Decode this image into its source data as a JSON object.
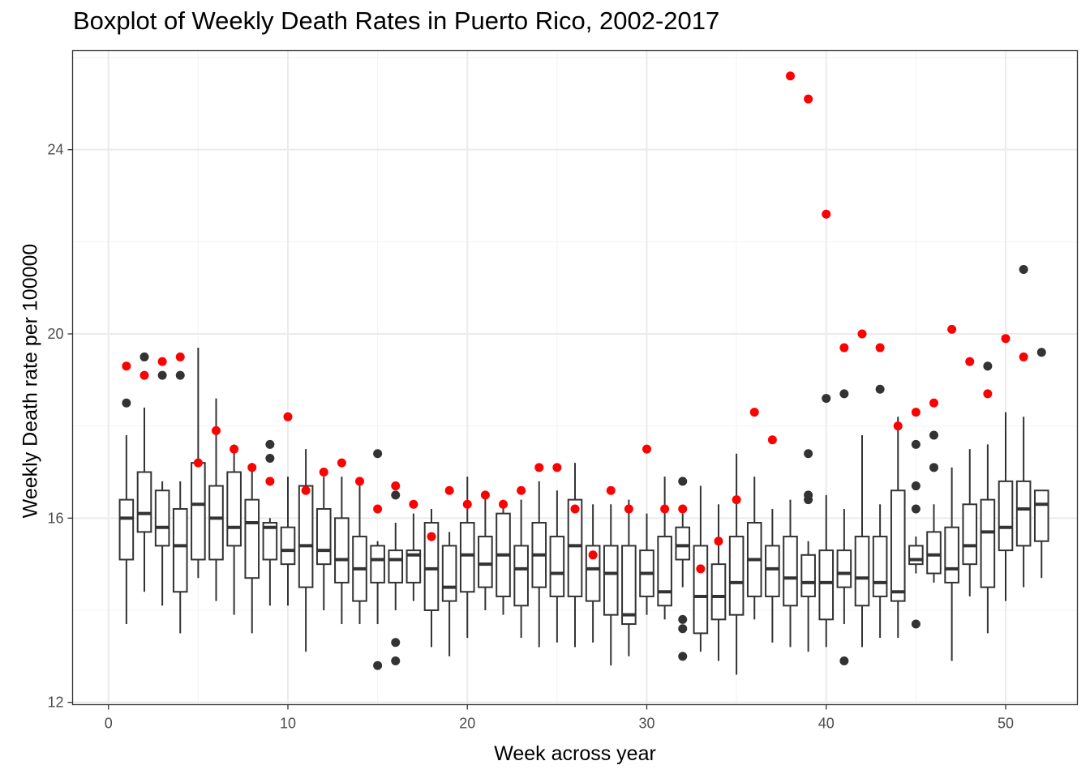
{
  "chart_data": {
    "type": "boxplot",
    "title": "Boxplot of Weekly Death Rates in Puerto Rico, 2002-2017",
    "xlabel": "Week across year",
    "ylabel": "Weekly Death rate per 100000",
    "xlim": [
      -2,
      54
    ],
    "ylim": [
      11.95,
      26.15
    ],
    "xticks": [
      0,
      10,
      20,
      30,
      40,
      50
    ],
    "yticks": [
      12,
      16,
      20,
      24
    ],
    "grid": true,
    "colors": {
      "box": "#333333",
      "outlier": "#333333",
      "highlight": "#ff0000",
      "grid_major": "#ebebeb",
      "grid_minor": "#f5f5f5"
    },
    "boxes": [
      {
        "week": 1,
        "lower": 13.7,
        "q1": 15.1,
        "median": 16.0,
        "q3": 16.4,
        "upper": 17.8,
        "outliers": [
          18.5
        ]
      },
      {
        "week": 2,
        "lower": 14.4,
        "q1": 15.7,
        "median": 16.1,
        "q3": 17.0,
        "upper": 18.4,
        "outliers": [
          19.5
        ]
      },
      {
        "week": 3,
        "lower": 14.1,
        "q1": 15.4,
        "median": 15.8,
        "q3": 16.6,
        "upper": 16.8,
        "outliers": [
          19.1
        ]
      },
      {
        "week": 4,
        "lower": 13.5,
        "q1": 14.4,
        "median": 15.4,
        "q3": 16.2,
        "upper": 16.8,
        "outliers": [
          19.1
        ]
      },
      {
        "week": 5,
        "lower": 14.7,
        "q1": 15.1,
        "median": 16.3,
        "q3": 17.2,
        "upper": 19.7,
        "outliers": []
      },
      {
        "week": 6,
        "lower": 14.2,
        "q1": 15.1,
        "median": 16.0,
        "q3": 16.7,
        "upper": 18.6,
        "outliers": []
      },
      {
        "week": 7,
        "lower": 13.9,
        "q1": 15.4,
        "median": 15.8,
        "q3": 17.0,
        "upper": 17.6,
        "outliers": []
      },
      {
        "week": 8,
        "lower": 13.5,
        "q1": 14.7,
        "median": 15.9,
        "q3": 16.4,
        "upper": 17.2,
        "outliers": []
      },
      {
        "week": 9,
        "lower": 14.1,
        "q1": 15.1,
        "median": 15.8,
        "q3": 15.9,
        "upper": 16.0,
        "outliers": [
          17.3,
          17.6
        ]
      },
      {
        "week": 10,
        "lower": 14.1,
        "q1": 15.0,
        "median": 15.3,
        "q3": 15.8,
        "upper": 16.9,
        "outliers": []
      },
      {
        "week": 11,
        "lower": 13.1,
        "q1": 14.5,
        "median": 15.4,
        "q3": 16.7,
        "upper": 17.5,
        "outliers": []
      },
      {
        "week": 12,
        "lower": 14.0,
        "q1": 15.0,
        "median": 15.3,
        "q3": 16.2,
        "upper": 16.9,
        "outliers": []
      },
      {
        "week": 13,
        "lower": 13.7,
        "q1": 14.6,
        "median": 15.1,
        "q3": 16.0,
        "upper": 16.9,
        "outliers": []
      },
      {
        "week": 14,
        "lower": 13.7,
        "q1": 14.2,
        "median": 14.9,
        "q3": 15.6,
        "upper": 16.8,
        "outliers": []
      },
      {
        "week": 15,
        "lower": 13.7,
        "q1": 14.6,
        "median": 15.1,
        "q3": 15.4,
        "upper": 15.5,
        "outliers": [
          12.8,
          17.4
        ]
      },
      {
        "week": 16,
        "lower": 14.0,
        "q1": 14.6,
        "median": 15.1,
        "q3": 15.3,
        "upper": 15.9,
        "outliers": [
          12.9,
          13.3,
          16.5
        ]
      },
      {
        "week": 17,
        "lower": 14.2,
        "q1": 14.6,
        "median": 15.2,
        "q3": 15.3,
        "upper": 16.1,
        "outliers": []
      },
      {
        "week": 18,
        "lower": 13.2,
        "q1": 14.0,
        "median": 14.9,
        "q3": 15.9,
        "upper": 16.2,
        "outliers": []
      },
      {
        "week": 19,
        "lower": 13.0,
        "q1": 14.2,
        "median": 14.5,
        "q3": 15.4,
        "upper": 15.7,
        "outliers": []
      },
      {
        "week": 20,
        "lower": 13.4,
        "q1": 14.4,
        "median": 15.2,
        "q3": 15.9,
        "upper": 16.9,
        "outliers": []
      },
      {
        "week": 21,
        "lower": 14.0,
        "q1": 14.5,
        "median": 15.0,
        "q3": 15.6,
        "upper": 16.5,
        "outliers": []
      },
      {
        "week": 22,
        "lower": 13.9,
        "q1": 14.3,
        "median": 15.2,
        "q3": 16.1,
        "upper": 16.4,
        "outliers": []
      },
      {
        "week": 23,
        "lower": 13.4,
        "q1": 14.1,
        "median": 14.9,
        "q3": 15.4,
        "upper": 16.4,
        "outliers": []
      },
      {
        "week": 24,
        "lower": 13.2,
        "q1": 14.5,
        "median": 15.2,
        "q3": 15.9,
        "upper": 16.8,
        "outliers": []
      },
      {
        "week": 25,
        "lower": 13.3,
        "q1": 14.3,
        "median": 14.8,
        "q3": 15.6,
        "upper": 16.6,
        "outliers": []
      },
      {
        "week": 26,
        "lower": 13.2,
        "q1": 14.3,
        "median": 15.4,
        "q3": 16.4,
        "upper": 17.2,
        "outliers": []
      },
      {
        "week": 27,
        "lower": 13.3,
        "q1": 14.2,
        "median": 14.9,
        "q3": 15.4,
        "upper": 16.3,
        "outliers": []
      },
      {
        "week": 28,
        "lower": 12.8,
        "q1": 13.9,
        "median": 14.8,
        "q3": 15.4,
        "upper": 16.3,
        "outliers": []
      },
      {
        "week": 29,
        "lower": 13.0,
        "q1": 13.7,
        "median": 13.9,
        "q3": 15.4,
        "upper": 16.4,
        "outliers": []
      },
      {
        "week": 30,
        "lower": 13.9,
        "q1": 14.3,
        "median": 14.8,
        "q3": 15.3,
        "upper": 16.1,
        "outliers": []
      },
      {
        "week": 31,
        "lower": 13.8,
        "q1": 14.1,
        "median": 14.4,
        "q3": 15.6,
        "upper": 16.9,
        "outliers": []
      },
      {
        "week": 32,
        "lower": 14.5,
        "q1": 15.1,
        "median": 15.4,
        "q3": 15.8,
        "upper": 16.1,
        "outliers": [
          13.0,
          13.6,
          13.8,
          16.8
        ]
      },
      {
        "week": 33,
        "lower": 13.1,
        "q1": 13.5,
        "median": 14.3,
        "q3": 15.4,
        "upper": 16.7,
        "outliers": []
      },
      {
        "week": 34,
        "lower": 12.9,
        "q1": 13.8,
        "median": 14.3,
        "q3": 15.0,
        "upper": 16.3,
        "outliers": []
      },
      {
        "week": 35,
        "lower": 12.6,
        "q1": 13.9,
        "median": 14.6,
        "q3": 15.6,
        "upper": 17.4,
        "outliers": []
      },
      {
        "week": 36,
        "lower": 13.8,
        "q1": 14.3,
        "median": 15.1,
        "q3": 15.9,
        "upper": 16.9,
        "outliers": []
      },
      {
        "week": 37,
        "lower": 13.3,
        "q1": 14.3,
        "median": 14.9,
        "q3": 15.4,
        "upper": 16.2,
        "outliers": []
      },
      {
        "week": 38,
        "lower": 13.2,
        "q1": 14.1,
        "median": 14.7,
        "q3": 15.6,
        "upper": 16.4,
        "outliers": []
      },
      {
        "week": 39,
        "lower": 13.1,
        "q1": 14.3,
        "median": 14.6,
        "q3": 15.2,
        "upper": 15.5,
        "outliers": [
          16.4,
          16.5,
          17.4
        ]
      },
      {
        "week": 40,
        "lower": 13.2,
        "q1": 13.8,
        "median": 14.6,
        "q3": 15.3,
        "upper": 16.5,
        "outliers": [
          18.6
        ]
      },
      {
        "week": 41,
        "lower": 13.7,
        "q1": 14.5,
        "median": 14.8,
        "q3": 15.3,
        "upper": 16.2,
        "outliers": [
          12.9,
          18.7
        ]
      },
      {
        "week": 42,
        "lower": 13.2,
        "q1": 14.1,
        "median": 14.7,
        "q3": 15.6,
        "upper": 17.8,
        "outliers": []
      },
      {
        "week": 43,
        "lower": 13.4,
        "q1": 14.3,
        "median": 14.6,
        "q3": 15.6,
        "upper": 16.3,
        "outliers": [
          18.8
        ]
      },
      {
        "week": 44,
        "lower": 13.4,
        "q1": 14.2,
        "median": 14.4,
        "q3": 16.6,
        "upper": 18.2,
        "outliers": []
      },
      {
        "week": 45,
        "lower": 14.8,
        "q1": 15.0,
        "median": 15.1,
        "q3": 15.4,
        "upper": 15.6,
        "outliers": [
          13.7,
          16.2,
          16.7,
          17.6
        ]
      },
      {
        "week": 46,
        "lower": 14.6,
        "q1": 14.8,
        "median": 15.2,
        "q3": 15.7,
        "upper": 16.3,
        "outliers": [
          17.1,
          17.8
        ]
      },
      {
        "week": 47,
        "lower": 12.9,
        "q1": 14.6,
        "median": 14.9,
        "q3": 15.8,
        "upper": 17.1,
        "outliers": []
      },
      {
        "week": 48,
        "lower": 14.3,
        "q1": 15.0,
        "median": 15.4,
        "q3": 16.3,
        "upper": 17.5,
        "outliers": []
      },
      {
        "week": 49,
        "lower": 13.5,
        "q1": 14.5,
        "median": 15.7,
        "q3": 16.4,
        "upper": 17.6,
        "outliers": [
          19.3
        ]
      },
      {
        "week": 50,
        "lower": 14.2,
        "q1": 15.3,
        "median": 15.8,
        "q3": 16.8,
        "upper": 18.3,
        "outliers": []
      },
      {
        "week": 51,
        "lower": 14.5,
        "q1": 15.4,
        "median": 16.2,
        "q3": 16.8,
        "upper": 18.2,
        "outliers": [
          21.4
        ]
      },
      {
        "week": 52,
        "lower": 14.7,
        "q1": 15.5,
        "median": 16.3,
        "q3": 16.6,
        "upper": 16.6,
        "outliers": [
          19.6
        ]
      }
    ],
    "highlight_points": [
      {
        "week": 1,
        "value": 19.3
      },
      {
        "week": 2,
        "value": 19.1
      },
      {
        "week": 3,
        "value": 19.4
      },
      {
        "week": 4,
        "value": 19.5
      },
      {
        "week": 5,
        "value": 17.2
      },
      {
        "week": 6,
        "value": 17.9
      },
      {
        "week": 7,
        "value": 17.5
      },
      {
        "week": 8,
        "value": 17.1
      },
      {
        "week": 9,
        "value": 16.8
      },
      {
        "week": 10,
        "value": 18.2
      },
      {
        "week": 11,
        "value": 16.6
      },
      {
        "week": 12,
        "value": 17.0
      },
      {
        "week": 13,
        "value": 17.2
      },
      {
        "week": 14,
        "value": 16.8
      },
      {
        "week": 15,
        "value": 16.2
      },
      {
        "week": 16,
        "value": 16.7
      },
      {
        "week": 17,
        "value": 16.3
      },
      {
        "week": 18,
        "value": 15.6
      },
      {
        "week": 19,
        "value": 16.6
      },
      {
        "week": 20,
        "value": 16.3
      },
      {
        "week": 21,
        "value": 16.5
      },
      {
        "week": 22,
        "value": 16.3
      },
      {
        "week": 23,
        "value": 16.6
      },
      {
        "week": 24,
        "value": 17.1
      },
      {
        "week": 25,
        "value": 17.1
      },
      {
        "week": 26,
        "value": 16.2
      },
      {
        "week": 27,
        "value": 15.2
      },
      {
        "week": 28,
        "value": 16.6
      },
      {
        "week": 29,
        "value": 16.2
      },
      {
        "week": 30,
        "value": 17.5
      },
      {
        "week": 31,
        "value": 16.2
      },
      {
        "week": 32,
        "value": 16.2
      },
      {
        "week": 33,
        "value": 14.9
      },
      {
        "week": 34,
        "value": 15.5
      },
      {
        "week": 35,
        "value": 16.4
      },
      {
        "week": 36,
        "value": 18.3
      },
      {
        "week": 37,
        "value": 17.7
      },
      {
        "week": 38,
        "value": 25.6
      },
      {
        "week": 39,
        "value": 25.1
      },
      {
        "week": 40,
        "value": 22.6
      },
      {
        "week": 41,
        "value": 19.7
      },
      {
        "week": 42,
        "value": 20.0
      },
      {
        "week": 43,
        "value": 19.7
      },
      {
        "week": 44,
        "value": 18.0
      },
      {
        "week": 45,
        "value": 18.3
      },
      {
        "week": 46,
        "value": 18.5
      },
      {
        "week": 47,
        "value": 20.1
      },
      {
        "week": 48,
        "value": 19.4
      },
      {
        "week": 49,
        "value": 18.7
      },
      {
        "week": 50,
        "value": 19.9
      },
      {
        "week": 51,
        "value": 19.5
      }
    ]
  }
}
